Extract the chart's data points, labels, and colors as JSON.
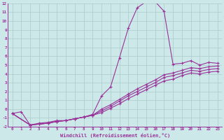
{
  "xlabel": "Windchill (Refroidissement éolien,°C)",
  "bg_color": "#cce8e8",
  "grid_color": "#aacccc",
  "line_color": "#993399",
  "xlim": [
    -0.5,
    23.5
  ],
  "ylim": [
    -2,
    12
  ],
  "xticks": [
    0,
    1,
    2,
    3,
    4,
    5,
    6,
    7,
    8,
    9,
    10,
    11,
    12,
    13,
    14,
    15,
    16,
    17,
    18,
    19,
    20,
    21,
    22,
    23
  ],
  "yticks": [
    -2,
    -1,
    0,
    1,
    2,
    3,
    4,
    5,
    6,
    7,
    8,
    9,
    10,
    11,
    12
  ],
  "line1_x": [
    0,
    1,
    2,
    3,
    4,
    5,
    6,
    7,
    8,
    9,
    10,
    11,
    12,
    13,
    14,
    15,
    16,
    17,
    18,
    19,
    20,
    21,
    22,
    23
  ],
  "line1_y": [
    -0.5,
    -0.3,
    -1.8,
    -1.6,
    -1.5,
    -1.3,
    -1.3,
    -1.1,
    -0.9,
    -0.6,
    1.5,
    2.5,
    5.8,
    9.2,
    11.5,
    12.2,
    12.2,
    11.1,
    5.1,
    5.2,
    5.5,
    5.0,
    5.3,
    5.2
  ],
  "line2_x": [
    0,
    2,
    3,
    4,
    5,
    6,
    7,
    8,
    9,
    10,
    11,
    12,
    13,
    14,
    15,
    16,
    17,
    18,
    19,
    20,
    21,
    22,
    23
  ],
  "line2_y": [
    -0.5,
    -1.8,
    -1.7,
    -1.6,
    -1.4,
    -1.3,
    -1.1,
    -0.9,
    -0.7,
    0.0,
    0.5,
    1.1,
    1.7,
    2.3,
    2.8,
    3.3,
    3.9,
    4.1,
    4.4,
    4.7,
    4.6,
    4.8,
    4.9
  ],
  "line3_x": [
    0,
    2,
    3,
    4,
    5,
    6,
    7,
    8,
    9,
    10,
    11,
    12,
    13,
    14,
    15,
    16,
    17,
    18,
    19,
    20,
    21,
    22,
    23
  ],
  "line3_y": [
    -0.5,
    -1.8,
    -1.7,
    -1.6,
    -1.4,
    -1.3,
    -1.1,
    -0.9,
    -0.7,
    -0.2,
    0.3,
    0.9,
    1.5,
    2.0,
    2.5,
    3.0,
    3.6,
    3.8,
    4.1,
    4.4,
    4.3,
    4.5,
    4.6
  ],
  "line4_x": [
    0,
    2,
    3,
    4,
    5,
    6,
    7,
    8,
    9,
    10,
    11,
    12,
    13,
    14,
    15,
    16,
    17,
    18,
    19,
    20,
    21,
    22,
    23
  ],
  "line4_y": [
    -0.5,
    -1.8,
    -1.7,
    -1.6,
    -1.4,
    -1.3,
    -1.1,
    -0.9,
    -0.7,
    -0.4,
    0.1,
    0.6,
    1.2,
    1.7,
    2.2,
    2.7,
    3.2,
    3.4,
    3.8,
    4.1,
    4.0,
    4.2,
    4.3
  ]
}
